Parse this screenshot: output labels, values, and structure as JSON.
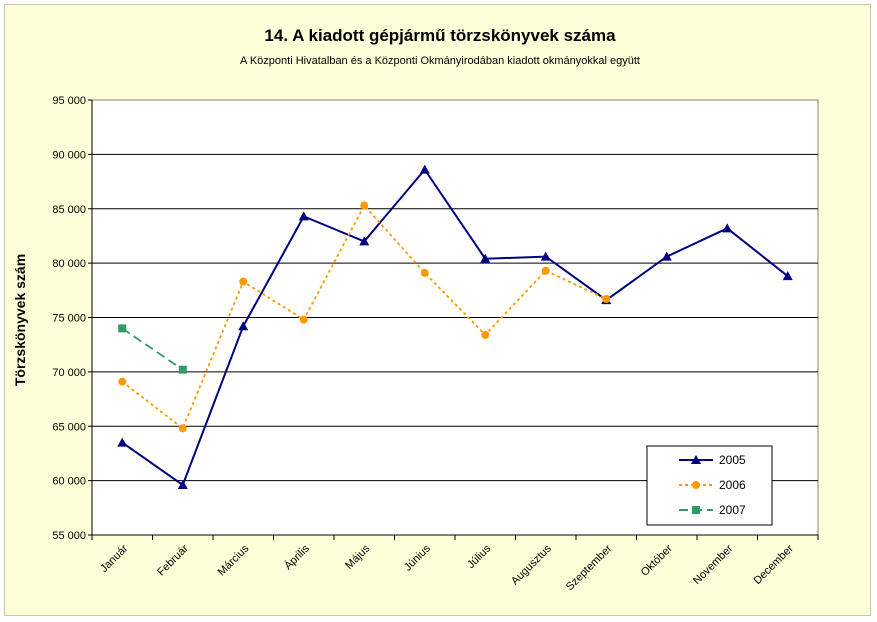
{
  "chart_data": {
    "type": "line",
    "title": "14. A  kiadott gépjármű  törzskönyvek száma",
    "subtitle": "A Központi Hivatalban és a Központi Okmányirodában kiadott okmányokkal együtt",
    "xlabel": "",
    "ylabel": "Törzskönyvek szám",
    "ylim": [
      55000,
      95000
    ],
    "y_ticks": [
      "55 000",
      "60 000",
      "65 000",
      "70 000",
      "75 000",
      "80 000",
      "85 000",
      "90 000",
      "95 000"
    ],
    "grid": true,
    "legend_position": "bottom-right",
    "categories": [
      "Január",
      "Február",
      "Március",
      "Április",
      "Május",
      "Június",
      "Július",
      "Augusztus",
      "Szeptember",
      "Október",
      "November",
      "December"
    ],
    "series": [
      {
        "name": "2005",
        "color": "#000080",
        "marker": "triangle",
        "dash": "solid",
        "values": [
          63500,
          59600,
          74200,
          84300,
          82000,
          88600,
          80400,
          80600,
          76600,
          80600,
          83200,
          78800
        ]
      },
      {
        "name": "2006",
        "color": "#ff9900",
        "marker": "circle",
        "dash": "dotted",
        "values": [
          69100,
          64800,
          78300,
          74800,
          85300,
          79100,
          73400,
          79300,
          76700,
          null,
          null,
          null
        ]
      },
      {
        "name": "2007",
        "color": "#339966",
        "marker": "square",
        "dash": "dashed",
        "values": [
          74000,
          70200,
          null,
          null,
          null,
          null,
          null,
          null,
          null,
          null,
          null,
          null
        ]
      }
    ],
    "colors": {
      "plot_background": "#ffffff",
      "frame_background": "#fefed8",
      "gridline": "#000000"
    }
  }
}
